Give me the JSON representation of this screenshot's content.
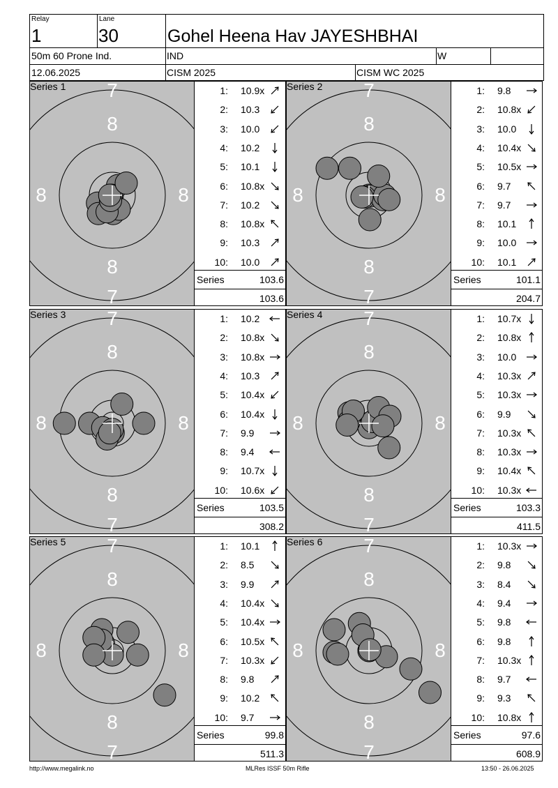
{
  "header": {
    "relay_label": "Relay",
    "relay": "1",
    "lane_label": "Lane",
    "lane": "30",
    "name": "Gohel Heena Hav JAYESHBHAI",
    "event": "50m 60 Prone Ind.",
    "nation": "IND",
    "gender": "W",
    "date": "12.06.2025",
    "competition": "CISM 2025",
    "match": "CISM WC 2025"
  },
  "series_label": "Series",
  "ring_labels": {
    "seven": "7",
    "eight": "8"
  },
  "series": [
    {
      "title": "Series 1",
      "total": "103.6",
      "cumulative": "103.6",
      "shots": [
        {
          "n": "1:",
          "v": "10.9x",
          "dir": "NE",
          "x": 0.6,
          "y": 1.1
        },
        {
          "n": "2:",
          "v": "10.3",
          "dir": "SW",
          "x": -1.7,
          "y": -0.9
        },
        {
          "n": "3:",
          "v": "10.0",
          "dir": "SW",
          "x": -1.6,
          "y": -2.1
        },
        {
          "n": "4:",
          "v": "10.2",
          "dir": "S",
          "x": 0.1,
          "y": -2.1
        },
        {
          "n": "5:",
          "v": "10.1",
          "dir": "S",
          "x": 0.8,
          "y": -1.6
        },
        {
          "n": "6:",
          "v": "10.8x",
          "dir": "SE",
          "x": -0.1,
          "y": 0.0
        },
        {
          "n": "7:",
          "v": "10.2",
          "dir": "SE",
          "x": -0.6,
          "y": -1.9
        },
        {
          "n": "8:",
          "v": "10.8x",
          "dir": "NW",
          "x": -0.2,
          "y": -0.6
        },
        {
          "n": "9:",
          "v": "10.3",
          "dir": "NE",
          "x": -0.3,
          "y": 0.0
        },
        {
          "n": "10:",
          "v": "10.0",
          "dir": "NE",
          "x": 1.6,
          "y": 1.4
        }
      ]
    },
    {
      "title": "Series 2",
      "total": "101.1",
      "cumulative": "204.7",
      "shots": [
        {
          "n": "1:",
          "v": "9.8",
          "dir": "E",
          "x": -2.2,
          "y": 3.1
        },
        {
          "n": "2:",
          "v": "10.8x",
          "dir": "SW",
          "x": 0.1,
          "y": -0.1
        },
        {
          "n": "3:",
          "v": "10.0",
          "dir": "S",
          "x": -0.5,
          "y": -0.2
        },
        {
          "n": "4:",
          "v": "10.4x",
          "dir": "SE",
          "x": 1.6,
          "y": -0.5
        },
        {
          "n": "5:",
          "v": "10.5x",
          "dir": "E",
          "x": 1.8,
          "y": 0.0
        },
        {
          "n": "6:",
          "v": "9.7",
          "dir": "NW",
          "x": -4.8,
          "y": 3.1
        },
        {
          "n": "7:",
          "v": "9.7",
          "dir": "E",
          "x": 1.1,
          "y": 2.2
        },
        {
          "n": "8:",
          "v": "10.1",
          "dir": "N",
          "x": 0.1,
          "y": -2.8
        },
        {
          "n": "9:",
          "v": "10.0",
          "dir": "E",
          "x": 2.3,
          "y": -0.5
        },
        {
          "n": "10:",
          "v": "10.1",
          "dir": "NE",
          "x": -0.8,
          "y": -0.2
        }
      ]
    },
    {
      "title": "Series 3",
      "total": "103.5",
      "cumulative": "308.2",
      "shots": [
        {
          "n": "1:",
          "v": "10.2",
          "dir": "W",
          "x": -2.6,
          "y": 0.0
        },
        {
          "n": "2:",
          "v": "10.8x",
          "dir": "SE",
          "x": 0.1,
          "y": -1.1
        },
        {
          "n": "3:",
          "v": "10.8x",
          "dir": "E",
          "x": -0.2,
          "y": -0.8
        },
        {
          "n": "4:",
          "v": "10.3",
          "dir": "NE",
          "x": 1.1,
          "y": 2.2
        },
        {
          "n": "5:",
          "v": "10.4x",
          "dir": "SW",
          "x": -1.1,
          "y": -0.5
        },
        {
          "n": "6:",
          "v": "10.4x",
          "dir": "S",
          "x": -0.6,
          "y": -1.8
        },
        {
          "n": "7:",
          "v": "9.9",
          "dir": "E",
          "x": 3.6,
          "y": 0.0
        },
        {
          "n": "8:",
          "v": "9.4",
          "dir": "W",
          "x": -5.5,
          "y": 0.0
        },
        {
          "n": "9:",
          "v": "10.7x",
          "dir": "S",
          "x": 0.0,
          "y": -0.7
        },
        {
          "n": "10:",
          "v": "10.6x",
          "dir": "SW",
          "x": -0.3,
          "y": -1.1
        }
      ]
    },
    {
      "title": "Series 4",
      "total": "103.3",
      "cumulative": "411.5",
      "shots": [
        {
          "n": "1:",
          "v": "10.7x",
          "dir": "S",
          "x": 0.0,
          "y": -0.5
        },
        {
          "n": "2:",
          "v": "10.8x",
          "dir": "N",
          "x": 0.4,
          "y": 0.2
        },
        {
          "n": "3:",
          "v": "10.0",
          "dir": "E",
          "x": -2.3,
          "y": 1.2
        },
        {
          "n": "4:",
          "v": "10.3x",
          "dir": "NE",
          "x": 1.1,
          "y": 1.8
        },
        {
          "n": "5:",
          "v": "10.3x",
          "dir": "E",
          "x": 2.4,
          "y": 0.8
        },
        {
          "n": "6:",
          "v": "9.9",
          "dir": "SE",
          "x": 2.3,
          "y": -2.8
        },
        {
          "n": "7:",
          "v": "10.3x",
          "dir": "NW",
          "x": -2.3,
          "y": 0.2
        },
        {
          "n": "8:",
          "v": "10.3x",
          "dir": "E",
          "x": 1.6,
          "y": -0.3
        },
        {
          "n": "9:",
          "v": "10.4x",
          "dir": "NW",
          "x": -1.8,
          "y": 1.4
        },
        {
          "n": "10:",
          "v": "10.3x",
          "dir": "W",
          "x": -2.5,
          "y": -0.2
        }
      ]
    },
    {
      "title": "Series 5",
      "total": "99.8",
      "cumulative": "511.3",
      "shots": [
        {
          "n": "1:",
          "v": "10.1",
          "dir": "N",
          "x": -1.2,
          "y": 2.4
        },
        {
          "n": "2:",
          "v": "8.5",
          "dir": "SE",
          "x": 6.0,
          "y": -5.1
        },
        {
          "n": "3:",
          "v": "9.9",
          "dir": "NE",
          "x": 1.8,
          "y": 2.1
        },
        {
          "n": "4:",
          "v": "10.4x",
          "dir": "SE",
          "x": -1.0,
          "y": 0.8
        },
        {
          "n": "5:",
          "v": "10.4x",
          "dir": "E",
          "x": -1.6,
          "y": -0.1
        },
        {
          "n": "6:",
          "v": "10.5x",
          "dir": "NW",
          "x": 0.0,
          "y": -0.5
        },
        {
          "n": "7:",
          "v": "10.3x",
          "dir": "SW",
          "x": -1.2,
          "y": 1.2
        },
        {
          "n": "8:",
          "v": "9.8",
          "dir": "NE",
          "x": 2.9,
          "y": -0.5
        },
        {
          "n": "9:",
          "v": "10.2",
          "dir": "NW",
          "x": -2.1,
          "y": 1.5
        },
        {
          "n": "10:",
          "v": "9.7",
          "dir": "E",
          "x": -2.1,
          "y": -0.5
        }
      ]
    },
    {
      "title": "Series 6",
      "total": "97.6",
      "cumulative": "608.9",
      "shots": [
        {
          "n": "1:",
          "v": "10.3x",
          "dir": "E",
          "x": 0.0,
          "y": 0.0
        },
        {
          "n": "2:",
          "v": "9.8",
          "dir": "SE",
          "x": -4.0,
          "y": 2.4
        },
        {
          "n": "3:",
          "v": "8.4",
          "dir": "SE",
          "x": 7.0,
          "y": -4.8
        },
        {
          "n": "4:",
          "v": "9.4",
          "dir": "E",
          "x": 4.8,
          "y": -2.1
        },
        {
          "n": "5:",
          "v": "9.8",
          "dir": "W",
          "x": -1.1,
          "y": 3.1
        },
        {
          "n": "6:",
          "v": "9.8",
          "dir": "N",
          "x": -0.7,
          "y": 1.8
        },
        {
          "n": "7:",
          "v": "10.3x",
          "dir": "N",
          "x": 2.0,
          "y": -0.7
        },
        {
          "n": "8:",
          "v": "9.7",
          "dir": "W",
          "x": -4.0,
          "y": -0.2
        },
        {
          "n": "9:",
          "v": "9.3",
          "dir": "NW",
          "x": -3.6,
          "y": -0.4
        },
        {
          "n": "10:",
          "v": "10.8x",
          "dir": "N",
          "x": 0.1,
          "y": 0.1
        }
      ]
    }
  ],
  "footer": {
    "left": "http://www.megalink.no",
    "center": "MLRes ISSF 50m Rifle",
    "right": "13:50 - 26.06.2025"
  }
}
